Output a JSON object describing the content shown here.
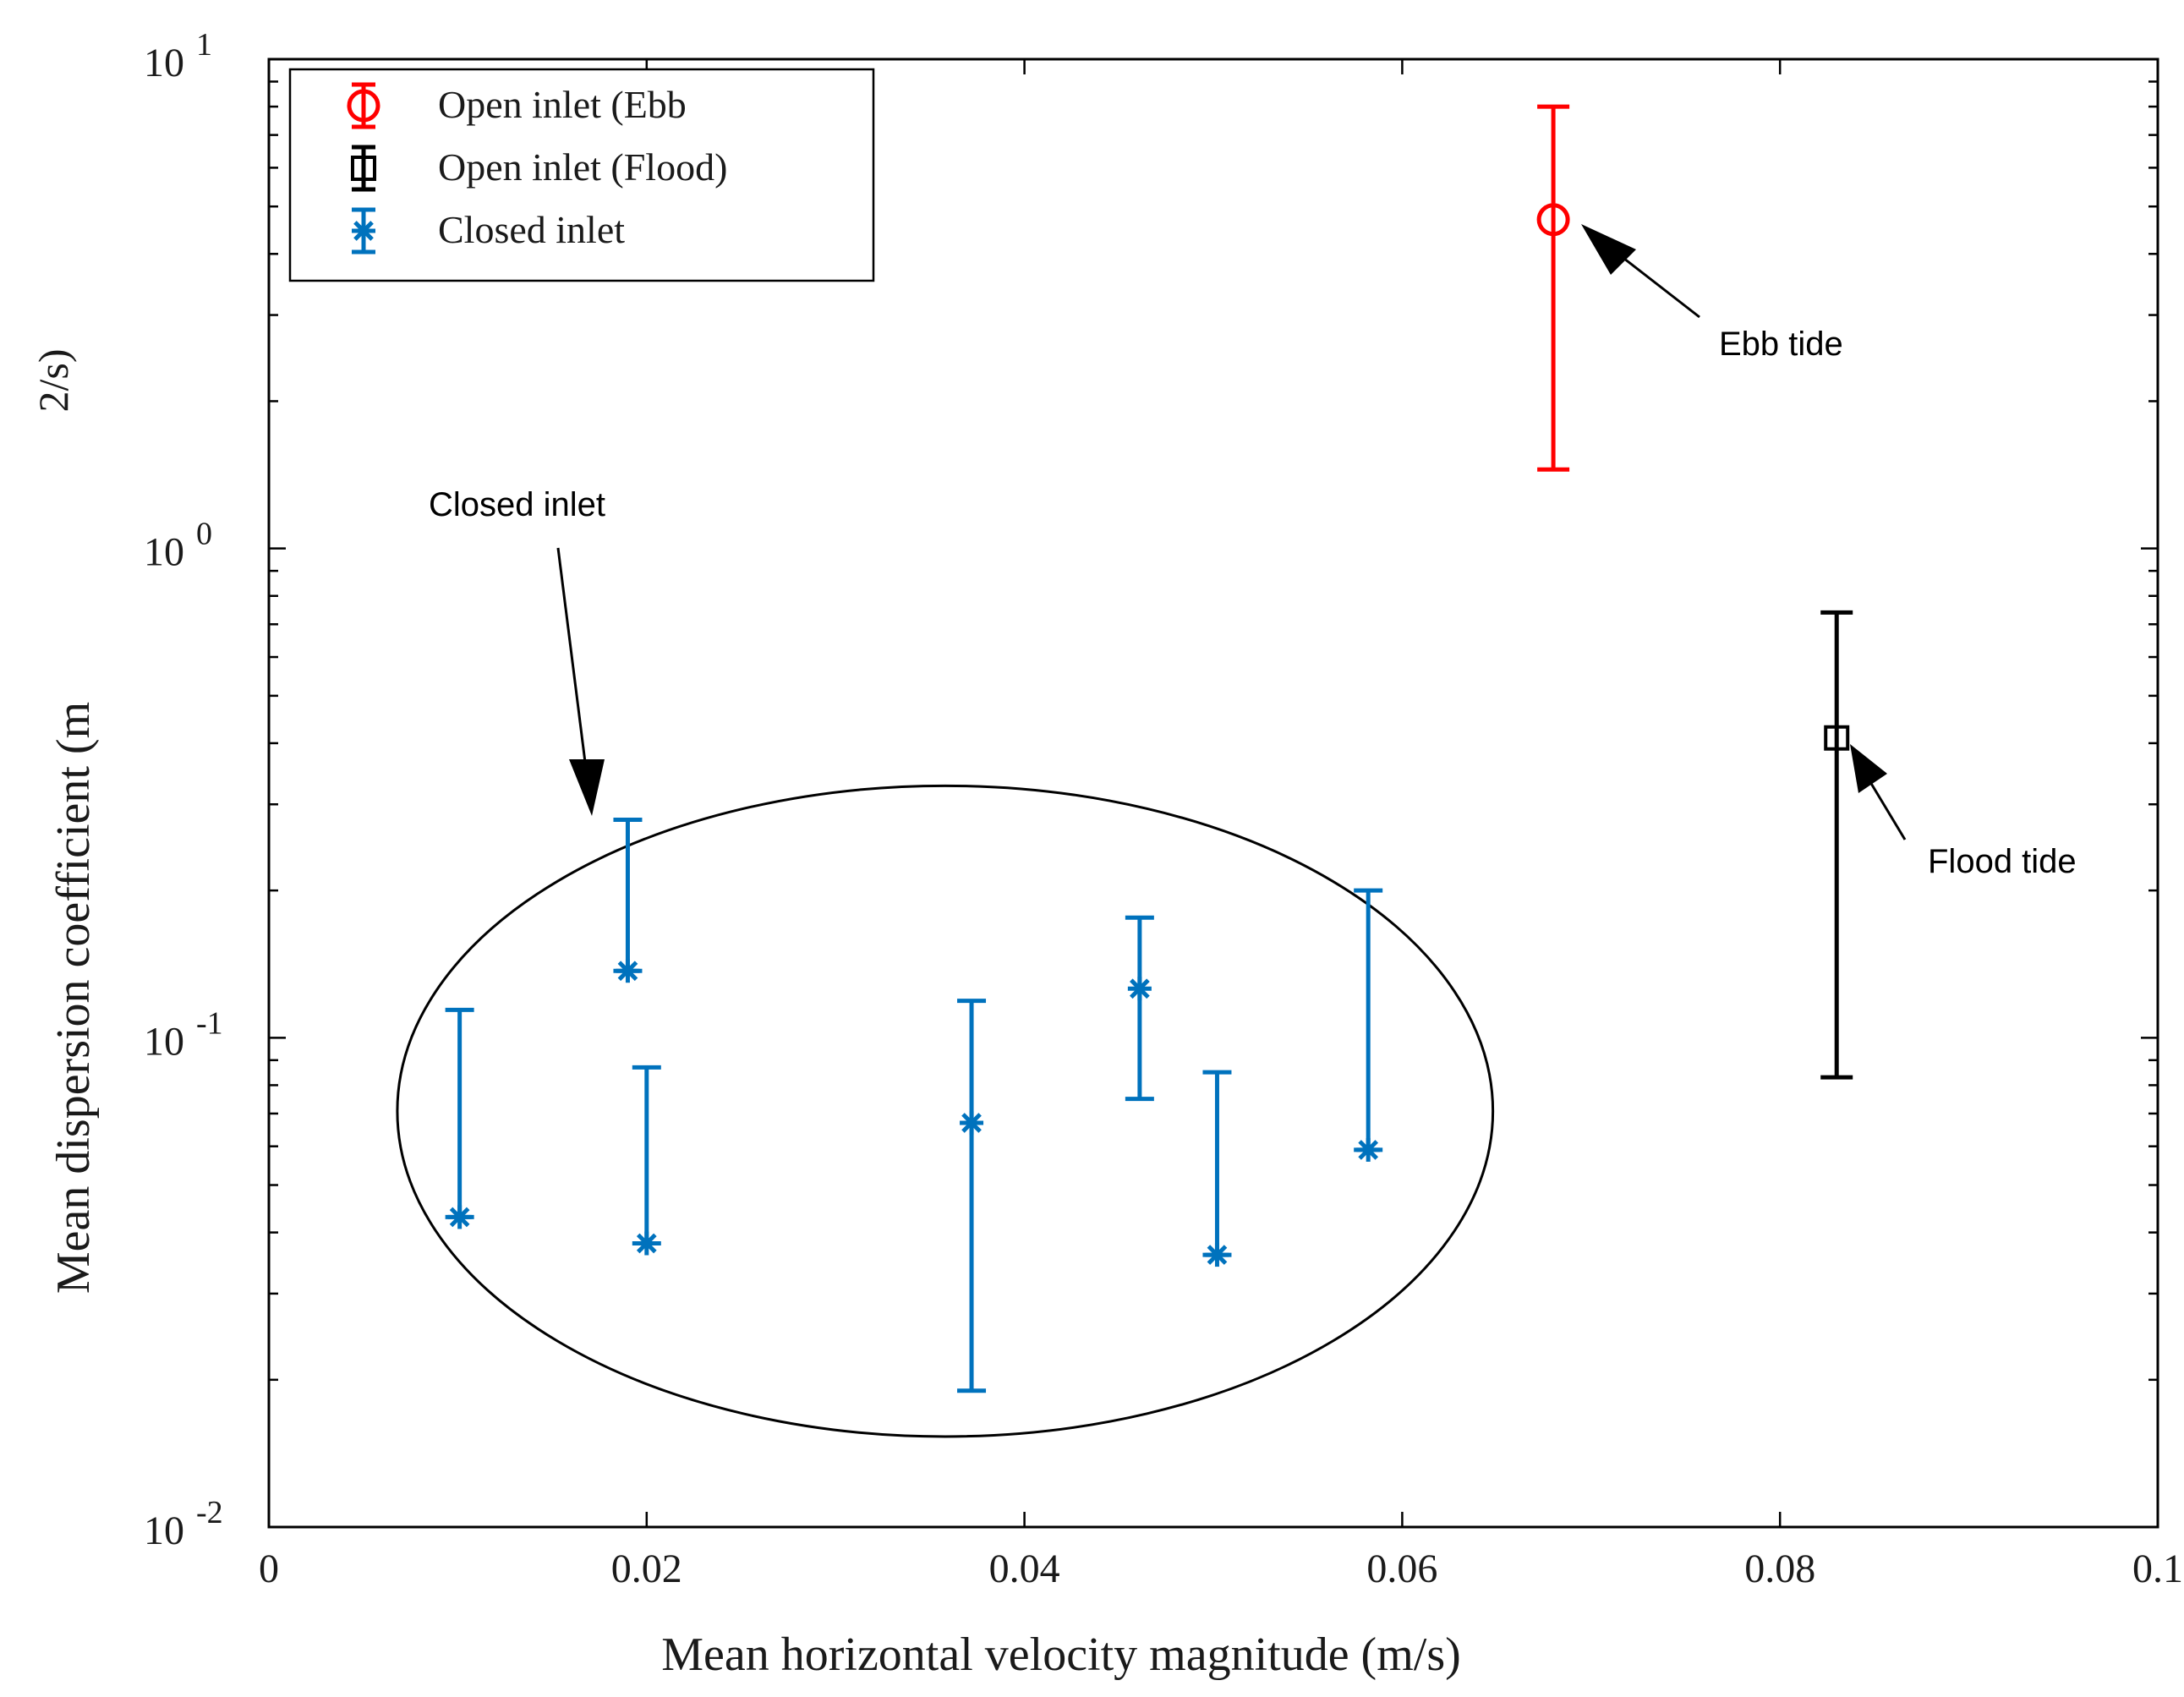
{
  "chart_data": {
    "type": "scatter",
    "xlabel": "Mean horizontal velocity magnitude (m/s)",
    "ylabel": "Mean dispersion coefficient (m",
    "ylabel_fragment": "2/s)",
    "xlim": [
      0,
      0.1
    ],
    "ylim": [
      0.01,
      10
    ],
    "yscale": "log",
    "x_ticks": [
      {
        "value": 0,
        "label": "0"
      },
      {
        "value": 0.02,
        "label": "0.02"
      },
      {
        "value": 0.04,
        "label": "0.04"
      },
      {
        "value": 0.06,
        "label": "0.06"
      },
      {
        "value": 0.08,
        "label": "0.08"
      },
      {
        "value": 0.1,
        "label": "0.1"
      }
    ],
    "y_ticks": [
      {
        "value": 0.01,
        "base": "10",
        "exp": "-2"
      },
      {
        "value": 0.1,
        "base": "10",
        "exp": "-1"
      },
      {
        "value": 1,
        "base": "10",
        "exp": "0"
      },
      {
        "value": 10,
        "base": "10",
        "exp": "1"
      }
    ],
    "series": [
      {
        "name": "Open inlet (Ebb",
        "marker": "circle",
        "color": "#ff0000",
        "points": [
          {
            "x": 0.068,
            "y": 4.7,
            "low": 1.45,
            "high": 8.0
          }
        ]
      },
      {
        "name": "Open inlet (Flood)",
        "marker": "square",
        "color": "#000000",
        "points": [
          {
            "x": 0.083,
            "y": 0.41,
            "low": 0.083,
            "high": 0.74
          }
        ]
      },
      {
        "name": "Closed inlet",
        "marker": "asterisk",
        "color": "#0072bd",
        "points": [
          {
            "x": 0.0101,
            "y": 0.043,
            "low": 0.043,
            "high": 0.114
          },
          {
            "x": 0.019,
            "y": 0.137,
            "low": 0.137,
            "high": 0.279
          },
          {
            "x": 0.02,
            "y": 0.038,
            "low": 0.038,
            "high": 0.087
          },
          {
            "x": 0.0372,
            "y": 0.067,
            "low": 0.019,
            "high": 0.119
          },
          {
            "x": 0.0461,
            "y": 0.126,
            "low": 0.075,
            "high": 0.176
          },
          {
            "x": 0.0502,
            "y": 0.036,
            "low": 0.036,
            "high": 0.085
          },
          {
            "x": 0.0582,
            "y": 0.059,
            "low": 0.059,
            "high": 0.2
          }
        ]
      }
    ],
    "legend_position": "top-left",
    "annotations": [
      {
        "text": "Ebb tide",
        "target_x": 0.068,
        "target_y": 4.7
      },
      {
        "text": "Flood tide",
        "target_x": 0.083,
        "target_y": 0.41
      },
      {
        "text": "Closed inlet",
        "target_x": 0.0175,
        "target_y": 0.285
      }
    ],
    "ellipse": {
      "cx": 0.0358,
      "cy_log": -1.15,
      "rx": 0.029,
      "ry_log": 0.665
    }
  }
}
